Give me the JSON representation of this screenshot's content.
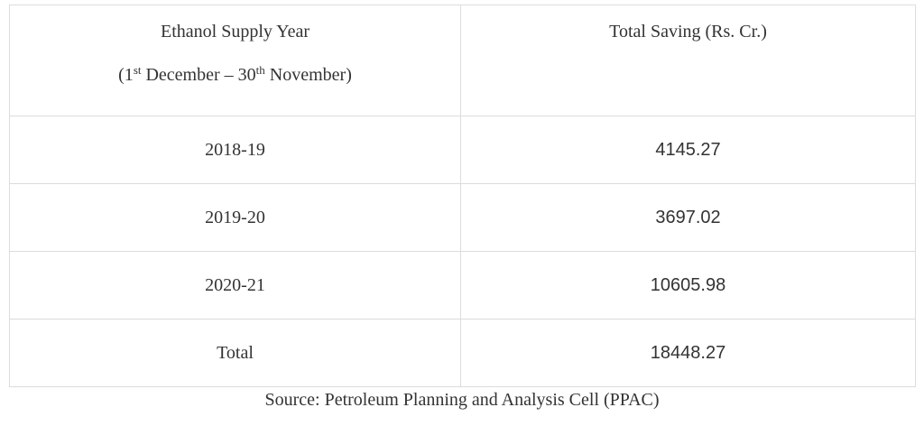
{
  "table": {
    "columns": [
      "Ethanol Supply Year",
      "Total Saving (Rs. Cr.)"
    ],
    "period_note": [
      "(1",
      "st",
      "December – 30",
      "th",
      "November)"
    ],
    "rows": [
      [
        "2018-19",
        "4145.27"
      ],
      [
        "2019-20",
        "3697.02"
      ],
      [
        "2020-21",
        "10605.98"
      ],
      [
        "Total",
        "18448.27"
      ]
    ]
  },
  "source": "Source: Petroleum Planning and Analysis Cell (PPAC)"
}
